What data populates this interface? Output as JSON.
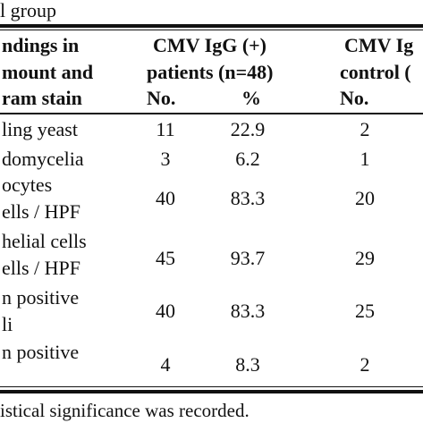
{
  "caption_top": "l group",
  "header": {
    "col1_line1": "ndings in",
    "col1_line2": "mount and",
    "col1_line3": "ram stain",
    "patients_line1": "CMV IgG (+)",
    "patients_line2": "patients (n=48)",
    "control_line1": "CMV Ig",
    "control_line2": "control (",
    "no_label": "No.",
    "pct_label": "%",
    "control_no_label": "No."
  },
  "rows": [
    {
      "label1": "ling yeast",
      "label2": "",
      "no": "11",
      "pct": "22.9",
      "ctrl": "2"
    },
    {
      "label1": "domycelia",
      "label2": "",
      "no": "3",
      "pct": "6.2",
      "ctrl": "1"
    },
    {
      "label1": "ocytes",
      "label2": "ells / HPF",
      "no": "40",
      "pct": "83.3",
      "ctrl": "20"
    },
    {
      "label1": "helial cells",
      "label2": "ells / HPF",
      "no": "45",
      "pct": "93.7",
      "ctrl": "29"
    },
    {
      "label1": "n positive",
      "label2": "li",
      "no": "40",
      "pct": "83.3",
      "ctrl": "25"
    },
    {
      "label1": "n positive",
      "label2": "",
      "no": "4",
      "pct": "8.3",
      "ctrl": "2"
    }
  ],
  "footnote": "istical significance was recorded."
}
